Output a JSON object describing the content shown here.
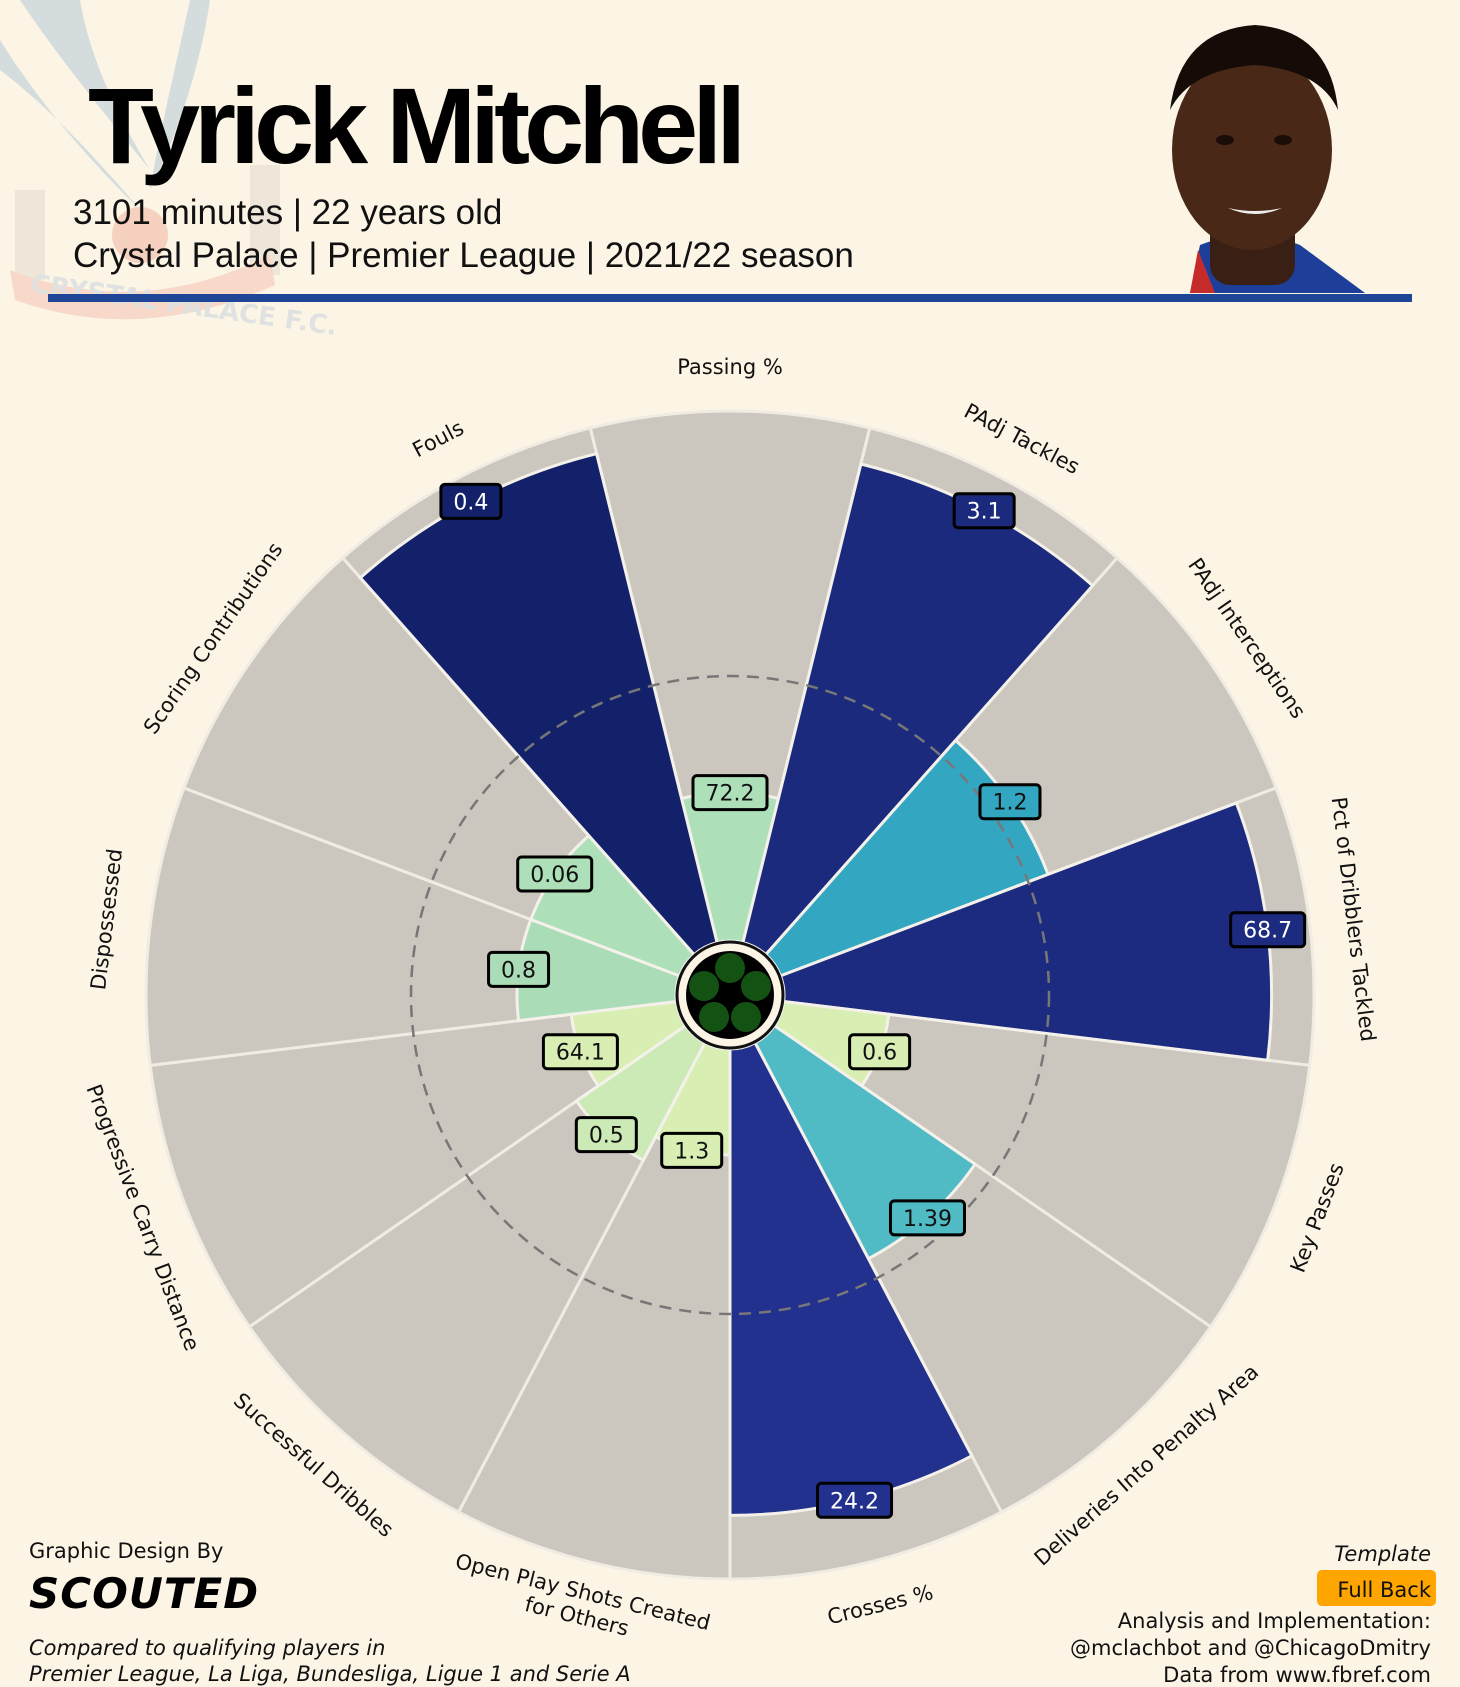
{
  "header": {
    "player_name": "Tyrick Mitchell",
    "line1": "3101 minutes | 22 years old",
    "line2": "Crystal Palace | Premier League | 2021/22 season",
    "club_logo_text": "CRYSTAL PALACE F.C.",
    "accent_color": "#1f4596"
  },
  "chart_data": {
    "type": "pizza",
    "description_scale": "percentile rank (0-100) shown by slice length; printed values are raw stats",
    "reference_line_percentile": 50,
    "slice_background_color": "#cbc6be",
    "series": [
      {
        "param": [
          "Passing %"
        ],
        "value": "72.2",
        "percentile": 28,
        "color": "#ade0b9"
      },
      {
        "param": [
          "PAdj Tackles"
        ],
        "value": "3.1",
        "percentile": 93,
        "color": "#1b2a7c"
      },
      {
        "param": [
          "PAdj Interceptions"
        ],
        "value": "1.2",
        "percentile": 54,
        "color": "#33a7c2"
      },
      {
        "param": [
          "Pct of Dribblers Tackled"
        ],
        "value": "68.7",
        "percentile": 92,
        "color": "#1c2a80"
      },
      {
        "param": [
          "Key Passes"
        ],
        "value": "0.6",
        "percentile": 20,
        "color": "#d8eeb3"
      },
      {
        "param": [
          "Deliveries Into Penalty Area"
        ],
        "value": "1.39",
        "percentile": 46,
        "color": "#50bbc5"
      },
      {
        "param": [
          "Crosses %"
        ],
        "value": "24.2",
        "percentile": 88,
        "color": "#23318e"
      },
      {
        "param": [
          "Open Play Shots Created",
          "for Others"
        ],
        "value": "1.3",
        "percentile": 20,
        "color": "#d8eeb3"
      },
      {
        "param": [
          "Successful Dribbles"
        ],
        "value": "0.5",
        "percentile": 25,
        "color": "#cbeab6"
      },
      {
        "param": [
          "Progressive Carry Distance"
        ],
        "value": "64.1",
        "percentile": 20,
        "color": "#d8eeb3"
      },
      {
        "param": [
          "Dispossessed"
        ],
        "value": "0.8",
        "percentile": 30,
        "color": "#a9dcb7"
      },
      {
        "param": [
          "Scoring Contributions"
        ],
        "value": "0.06",
        "percentile": 30,
        "color": "#addfb9"
      },
      {
        "param": [
          "Fouls"
        ],
        "value": "0.4",
        "percentile": 95,
        "color": "#13216b"
      }
    ]
  },
  "footer": {
    "design_by": "Graphic Design By",
    "brand": "SCOUTED",
    "compared_line1": "Compared to qualifying players in",
    "compared_line2": "Premier League, La Liga, Bundesliga, Ligue 1 and Serie A",
    "template_label": "Template",
    "template_value": "Full Back",
    "template_color": "#ffa500",
    "analysis_label": "Analysis and Implementation:",
    "analysis_authors": "@mclachbot and @ChicagoDmitry",
    "data_source": "Data from www.fbref.com"
  }
}
